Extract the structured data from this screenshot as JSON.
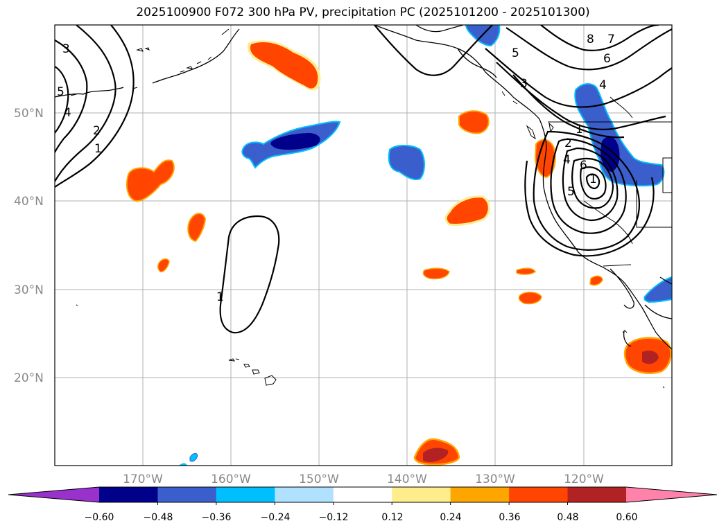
{
  "title": "2025100900 F072 300 hPa PV, precipitation PC (2025101200 - 2025101300)",
  "map": {
    "lat_labels": [
      "50°N",
      "40°N",
      "30°N",
      "20°N"
    ],
    "lon_labels": [
      "170°W",
      "160°W",
      "150°W",
      "140°W",
      "130°W",
      "120°W"
    ],
    "lon_range": [
      -180,
      -110
    ],
    "lat_range": [
      10,
      60
    ],
    "gridlines": true,
    "contour_labels": [
      "3",
      "5",
      "4",
      "2",
      "1",
      "1",
      "5",
      "3",
      "4",
      "8",
      "7",
      "6",
      "1",
      "2",
      "4",
      "6",
      "5",
      "1"
    ]
  },
  "colorbar": {
    "ticks": [
      "−0.60",
      "−0.48",
      "−0.36",
      "−0.24",
      "−0.12",
      "0.12",
      "0.24",
      "0.36",
      "0.48",
      "0.60"
    ],
    "colors": [
      "#9932cc",
      "#00008b",
      "#3a5fcd",
      "#00bfff",
      "#b0e2ff",
      "#ffffff",
      "#ffec8b",
      "#ffa500",
      "#ff4500",
      "#b22222",
      "#ff82ab"
    ],
    "extend": "both"
  }
}
